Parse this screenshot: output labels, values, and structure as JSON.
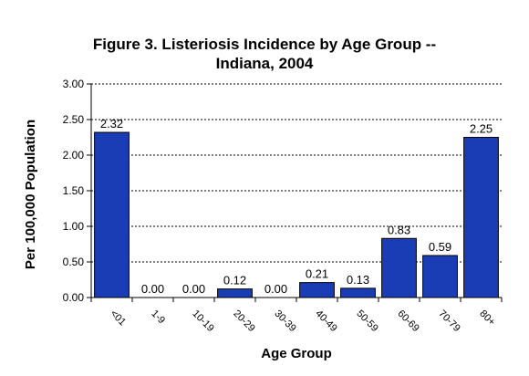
{
  "chart_data": {
    "type": "bar",
    "title_lines": [
      "Figure 3.  Listeriosis Incidence by Age Group --",
      "Indiana, 2004"
    ],
    "xlabel": "Age Group",
    "ylabel": "Per 100,000 Population",
    "categories": [
      "<01",
      "1-9",
      "10-19",
      "20-29",
      "30-39",
      "40-49",
      "50-59",
      "60-69",
      "70-79",
      "80+"
    ],
    "values": [
      2.32,
      0.0,
      0.0,
      0.12,
      0.0,
      0.21,
      0.13,
      0.83,
      0.59,
      2.25
    ],
    "value_labels": [
      "2.32",
      "0.00",
      "0.00",
      "0.12",
      "0.00",
      "0.21",
      "0.13",
      "0.83",
      "0.59",
      "2.25"
    ],
    "ylim": [
      0,
      3.0
    ],
    "yticks": [
      0,
      0.5,
      1.0,
      1.5,
      2.0,
      2.5,
      3.0
    ],
    "ytick_labels": [
      "0.00",
      "0.50",
      "1.00",
      "1.50",
      "2.00",
      "2.50",
      "3.00"
    ],
    "grid": "horizontal dotted",
    "legend": "none",
    "bar_color": "#1a3cb4",
    "bar_edge_color": "#000000"
  }
}
